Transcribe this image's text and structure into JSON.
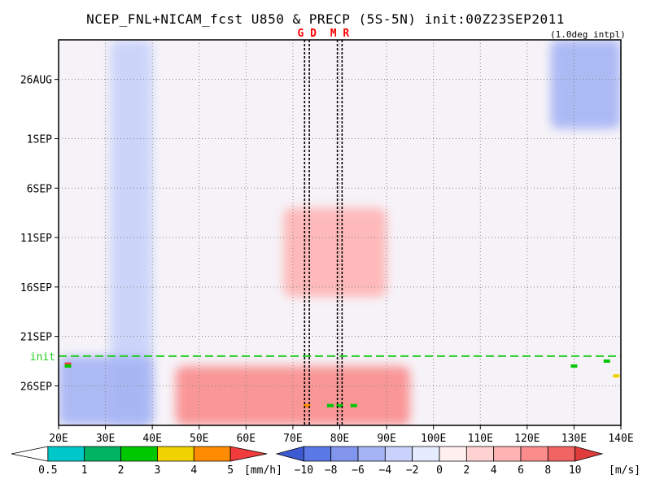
{
  "title": "NCEP_FNL+NICAM_fcst U850 & PRECP (5S-5N) init:00Z23SEP2011",
  "subtitle": "(1.0deg intpl)",
  "chart_data": {
    "type": "heatmap",
    "description_axes": "Hovmoller: longitude (x) vs time (y, increasing downward)",
    "xlim": [
      20,
      140
    ],
    "x_ticks": [
      "20E",
      "30E",
      "40E",
      "50E",
      "60E",
      "70E",
      "80E",
      "90E",
      "100E",
      "110E",
      "120E",
      "130E",
      "140E"
    ],
    "x_tick_values": [
      20,
      30,
      40,
      50,
      60,
      70,
      80,
      90,
      100,
      110,
      120,
      130,
      140
    ],
    "y_start_date": "2011-08-22",
    "y_end_date": "2011-09-30",
    "y_ticks": [
      "26AUG",
      "1SEP",
      "6SEP",
      "11SEP",
      "16SEP",
      "21SEP",
      "26SEP"
    ],
    "y_tick_dates": [
      "2011-08-26",
      "2011-09-01",
      "2011-09-06",
      "2011-09-11",
      "2011-09-16",
      "2011-09-21",
      "2011-09-26"
    ],
    "grid": true,
    "init_line": {
      "label": "init",
      "date": "2011-09-23",
      "color": "#22cc22"
    },
    "vertical_markers": [
      {
        "label": "G",
        "lon": 72.5
      },
      {
        "label": "D",
        "lon": 73.5
      },
      {
        "label": "M",
        "lon": 79.5
      },
      {
        "label": "R",
        "lon": 80.5
      }
    ],
    "marker_label_color": "#ff0000",
    "u850_features": [
      {
        "kind": "easterly",
        "lon_range": [
          31,
          40
        ],
        "date_range": [
          "2011-08-22",
          "2011-09-30"
        ],
        "value_ms": -4
      },
      {
        "kind": "westerly",
        "lon_range": [
          68,
          90
        ],
        "date_range": [
          "2011-09-08",
          "2011-09-17"
        ],
        "value_ms": 4
      },
      {
        "kind": "westerly",
        "lon_range": [
          45,
          95
        ],
        "date_range": [
          "2011-09-24",
          "2011-09-30"
        ],
        "value_ms": 6
      },
      {
        "kind": "easterly",
        "lon_range": [
          125,
          140
        ],
        "date_range": [
          "2011-08-22",
          "2011-08-31"
        ],
        "value_ms": -6
      },
      {
        "kind": "easterly",
        "lon_range": [
          20,
          40
        ],
        "date_range": [
          "2011-09-23",
          "2011-09-30"
        ],
        "value_ms": -6
      }
    ],
    "precip_cells": [
      {
        "lon": 22,
        "date": "2011-09-23.8",
        "value": 5
      },
      {
        "lon": 22,
        "date": "2011-09-24",
        "value": 2
      },
      {
        "lon": 73,
        "date": "2011-09-28",
        "value": 4
      },
      {
        "lon": 78,
        "date": "2011-09-28",
        "value": 2
      },
      {
        "lon": 80,
        "date": "2011-09-28",
        "value": 2
      },
      {
        "lon": 83,
        "date": "2011-09-28",
        "value": 2
      },
      {
        "lon": 130,
        "date": "2011-09-24",
        "value": 2
      },
      {
        "lon": 137,
        "date": "2011-09-23.5",
        "value": 2
      },
      {
        "lon": 139,
        "date": "2011-09-25",
        "value": 3
      }
    ],
    "legend_precip": {
      "unit": "[mm/h]",
      "levels": [
        "0.5",
        "1",
        "2",
        "3",
        "4",
        "5"
      ],
      "colors": [
        "#ffffff",
        "#00c8c8",
        "#00b464",
        "#00c800",
        "#f0d200",
        "#ff8c00",
        "#f03c3c"
      ]
    },
    "legend_u": {
      "unit": "[m/s]",
      "levels": [
        "−10",
        "−8",
        "−6",
        "−4",
        "−2",
        "0",
        "2",
        "4",
        "6",
        "8",
        "10"
      ],
      "colors": [
        "#3c5ad2",
        "#5a78e6",
        "#8296ee",
        "#a5b4f4",
        "#c8d2fa",
        "#e6ecff",
        "#fff0f0",
        "#ffd2d2",
        "#ffb4b4",
        "#fa8c8c",
        "#f06464",
        "#e03c3c"
      ]
    }
  }
}
